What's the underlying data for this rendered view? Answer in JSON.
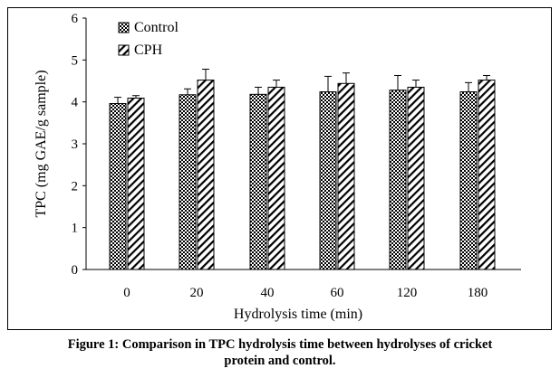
{
  "chart_data": {
    "type": "bar",
    "categories": [
      "0",
      "20",
      "40",
      "60",
      "120",
      "180"
    ],
    "series": [
      {
        "name": "Control",
        "values": [
          3.96,
          4.17,
          4.18,
          4.24,
          4.28,
          4.24
        ],
        "errors": [
          0.15,
          0.14,
          0.17,
          0.37,
          0.35,
          0.22
        ],
        "pattern": "checkered",
        "color": "#000000"
      },
      {
        "name": "CPH",
        "values": [
          4.09,
          4.52,
          4.35,
          4.44,
          4.35,
          4.52
        ],
        "errors": [
          0.06,
          0.26,
          0.17,
          0.25,
          0.17,
          0.11
        ],
        "pattern": "diagonal-hatch",
        "color": "#000000"
      }
    ],
    "title": "",
    "xlabel": "Hydrolysis time (min)",
    "ylabel": "TPC (mg GAE/g sample)",
    "ylim": [
      0,
      6
    ],
    "yticks": [
      "0",
      "1",
      "2",
      "3",
      "4",
      "5",
      "6"
    ],
    "grid": false,
    "legend_position": "top-left"
  },
  "caption": {
    "line1": "Figure 1: Comparison in TPC hydrolysis time between hydrolyses of cricket",
    "line2": "protein and control."
  }
}
